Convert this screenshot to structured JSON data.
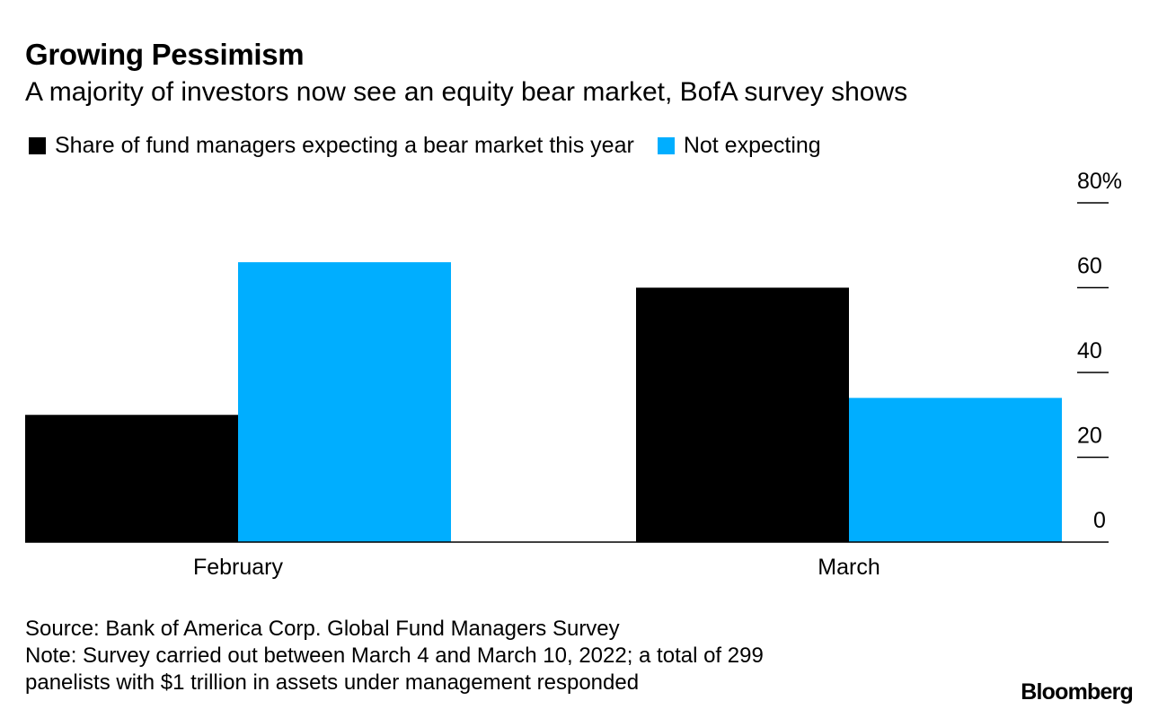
{
  "chart_data": {
    "type": "bar",
    "title": "Growing Pessimism",
    "subtitle": "A majority of investors now see an equity bear market, BofA survey shows",
    "categories": [
      "February",
      "March"
    ],
    "series": [
      {
        "name": "Share of fund managers expecting a bear market this year",
        "color": "#000000",
        "values": [
          30,
          60
        ]
      },
      {
        "name": "Not expecting",
        "color": "#00aeff",
        "values": [
          66,
          34
        ]
      }
    ],
    "xlabel": "",
    "ylabel": "",
    "ylim": [
      0,
      80
    ],
    "yticks": [
      0,
      20,
      40,
      60,
      80
    ],
    "ytick_labels": [
      "0",
      "20",
      "40",
      "60",
      "80%"
    ],
    "y_axis_side": "right",
    "grid": false,
    "legend_position": "top-left"
  },
  "footer": {
    "source": "Source: Bank of America Corp. Global Fund Managers Survey",
    "note_line1": "Note: Survey carried out between March 4 and March 10, 2022; a total of 299",
    "note_line2": "panelists with $1 trillion in assets under management responded"
  },
  "brand": "Bloomberg"
}
